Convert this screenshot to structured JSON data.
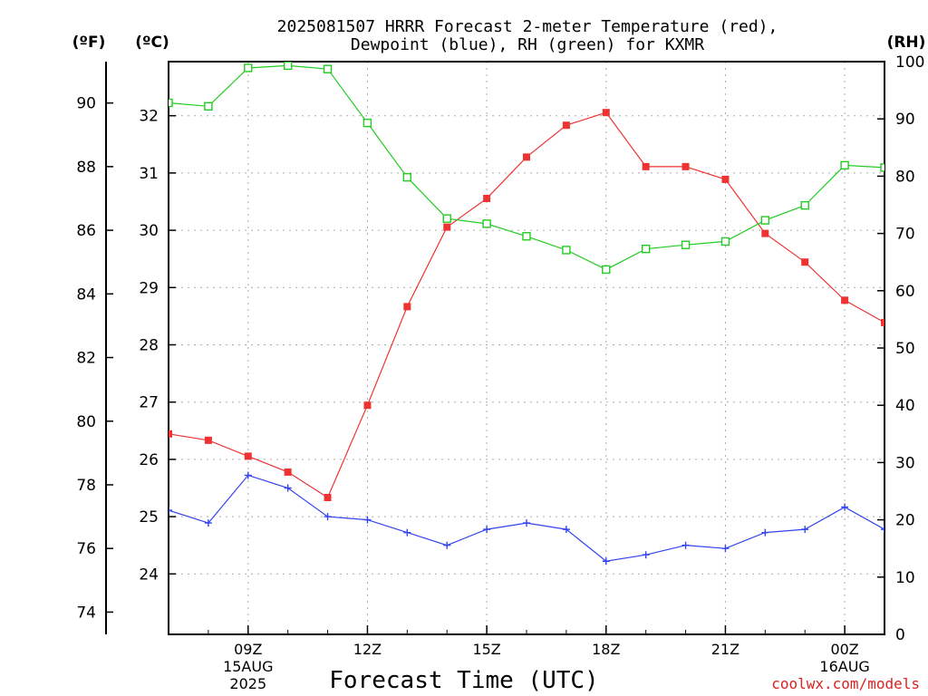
{
  "chart_data": {
    "type": "line",
    "title_lines": [
      "2025081507 HRRR Forecast 2-meter Temperature (red),",
      "Dewpoint (blue), RH (green) for KXMR"
    ],
    "xlabel": "Forecast Time (UTC)",
    "credit": "coolwx.com/models",
    "unit_labels": {
      "fahrenheit": "(ºF)",
      "celsius": "(ºC)",
      "rh": "(RH)"
    },
    "x_hours": [
      7,
      8,
      9,
      10,
      11,
      12,
      13,
      14,
      15,
      16,
      17,
      18,
      19,
      20,
      21,
      22,
      23,
      24,
      25
    ],
    "x_ticks": [
      {
        "hour": 9,
        "lines": [
          "09Z",
          "15AUG",
          "2025"
        ]
      },
      {
        "hour": 12,
        "lines": [
          "12Z"
        ]
      },
      {
        "hour": 15,
        "lines": [
          "15Z"
        ]
      },
      {
        "hour": 18,
        "lines": [
          "18Z"
        ]
      },
      {
        "hour": 21,
        "lines": [
          "21Z"
        ]
      },
      {
        "hour": 24,
        "lines": [
          "00Z",
          "16AUG"
        ]
      }
    ],
    "xlim": [
      7,
      25
    ],
    "axes": {
      "fahrenheit": {
        "ticks": [
          74,
          76,
          78,
          80,
          82,
          84,
          86,
          88,
          90
        ],
        "labels": [
          "74",
          "76",
          "78",
          "80",
          "82",
          "84",
          "86",
          "88",
          "90"
        ]
      },
      "celsius": {
        "ticks": [
          24,
          25,
          26,
          27,
          28,
          29,
          30,
          31,
          32
        ],
        "labels": [
          "24",
          "25",
          "26",
          "27",
          "28",
          "29",
          "30",
          "31",
          "32"
        ]
      },
      "rh": {
        "ticks": [
          0,
          10,
          20,
          30,
          40,
          50,
          60,
          70,
          80,
          90,
          100
        ],
        "labels": [
          "0",
          "10",
          "20",
          "30",
          "40",
          "50",
          "60",
          "70",
          "80",
          "90",
          "100"
        ],
        "ylim": [
          0,
          100
        ]
      }
    },
    "temp_ylim_f": [
      73.3,
      91.3
    ],
    "series": [
      {
        "name": "2-meter Temperature",
        "color": "#ee3333",
        "marker": "filled-square",
        "unit": "F",
        "values": [
          79.6,
          79.4,
          78.9,
          78.4,
          77.6,
          80.5,
          83.6,
          86.1,
          87.0,
          88.3,
          89.3,
          89.7,
          88.0,
          88.0,
          87.6,
          85.9,
          85.0,
          83.8,
          83.1
        ]
      },
      {
        "name": "Dewpoint",
        "color": "#3344ee",
        "marker": "plus",
        "unit": "F",
        "values": [
          77.2,
          76.8,
          78.3,
          77.9,
          77.0,
          76.9,
          76.5,
          76.1,
          76.6,
          76.8,
          76.6,
          75.6,
          75.8,
          76.1,
          76.0,
          76.5,
          76.6,
          77.3,
          76.6
        ]
      },
      {
        "name": "RH",
        "color": "#22cc22",
        "marker": "open-square",
        "unit": "%",
        "values": [
          92.8,
          92.2,
          98.9,
          99.3,
          98.7,
          89.3,
          79.8,
          72.6,
          71.7,
          69.5,
          67.1,
          63.7,
          67.3,
          68.0,
          68.6,
          72.3,
          74.9,
          81.9,
          81.5
        ]
      }
    ],
    "grid": true
  }
}
